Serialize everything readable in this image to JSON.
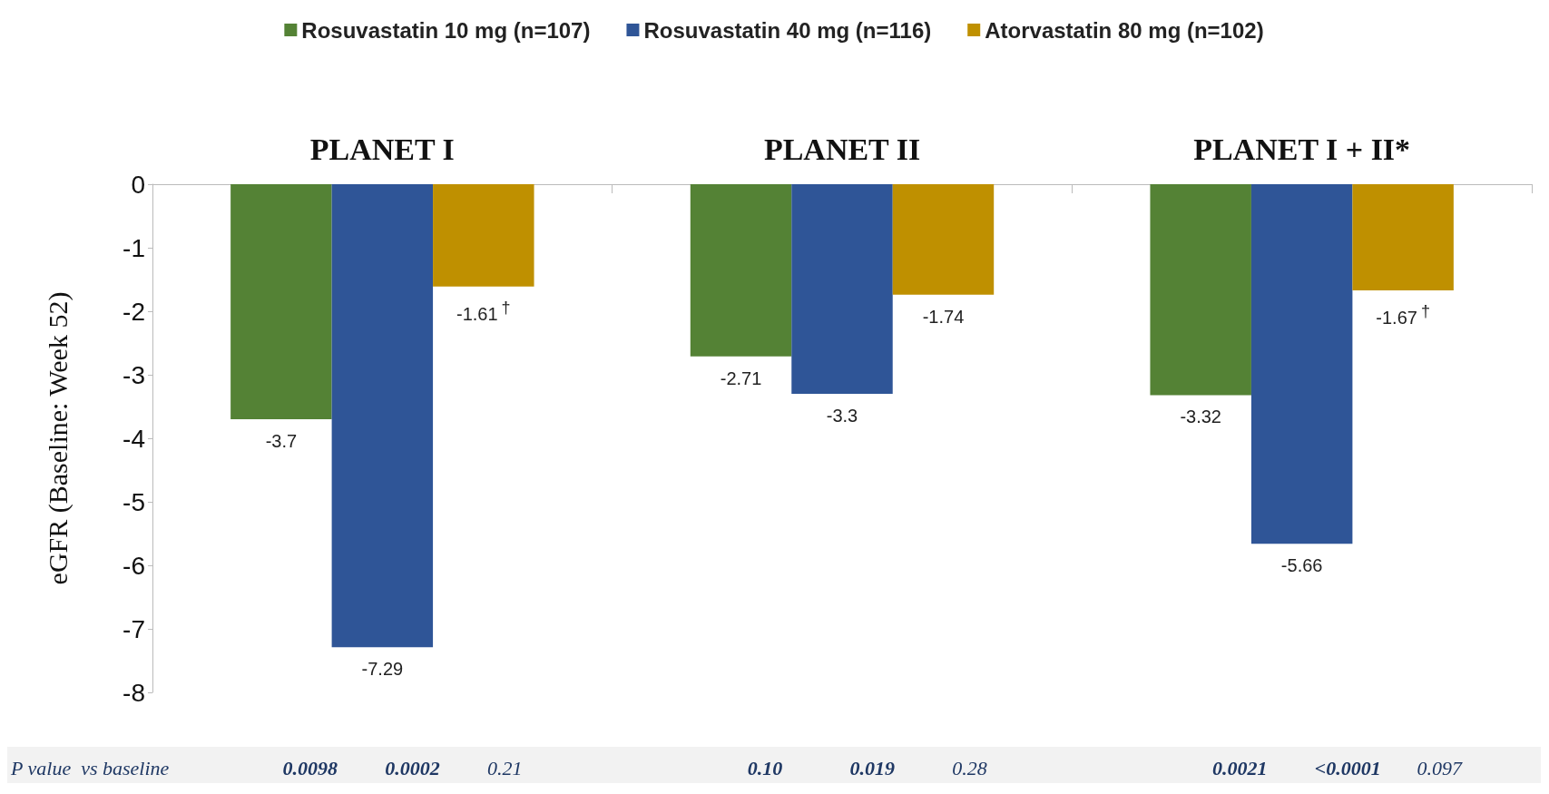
{
  "chart_data": {
    "type": "bar",
    "ylabel": "eGFR (Baseline: Week 52)",
    "categories": [
      "PLANET I",
      "PLANET II",
      "PLANET I + II*"
    ],
    "series": [
      {
        "name": "Rosuvastatin 10 mg (n=107)",
        "color": "#548235",
        "values": [
          -3.7,
          -2.71,
          -3.32
        ],
        "value_labels": [
          "-3.7",
          "-2.71",
          "-3.32"
        ]
      },
      {
        "name": "Rosuvastatin 40 mg (n=116)",
        "color": "#2f5597",
        "values": [
          -7.29,
          -3.3,
          -5.66
        ],
        "value_labels": [
          "-7.29",
          "-3.3",
          "-5.66"
        ]
      },
      {
        "name": "Atorvastatin 80 mg (n=102)",
        "color": "#bf9000",
        "values": [
          -1.61,
          -1.74,
          -1.67
        ],
        "value_labels": [
          "-1.61$^{†}$",
          "-1.74",
          "-1.67$^{†}$"
        ]
      }
    ],
    "ylim": [
      -8,
      0
    ],
    "yticks": [
      -8,
      -7,
      -6,
      -5,
      -4,
      -3,
      -2,
      -1,
      0
    ],
    "grid": false,
    "legend": "top",
    "annotations": [
      "P value  vs baseline",
      "0.0098",
      "0.0002",
      "0.21",
      "0.10",
      "0.019",
      "0.28",
      "0.0021",
      "<0.0001",
      "0.097"
    ]
  }
}
